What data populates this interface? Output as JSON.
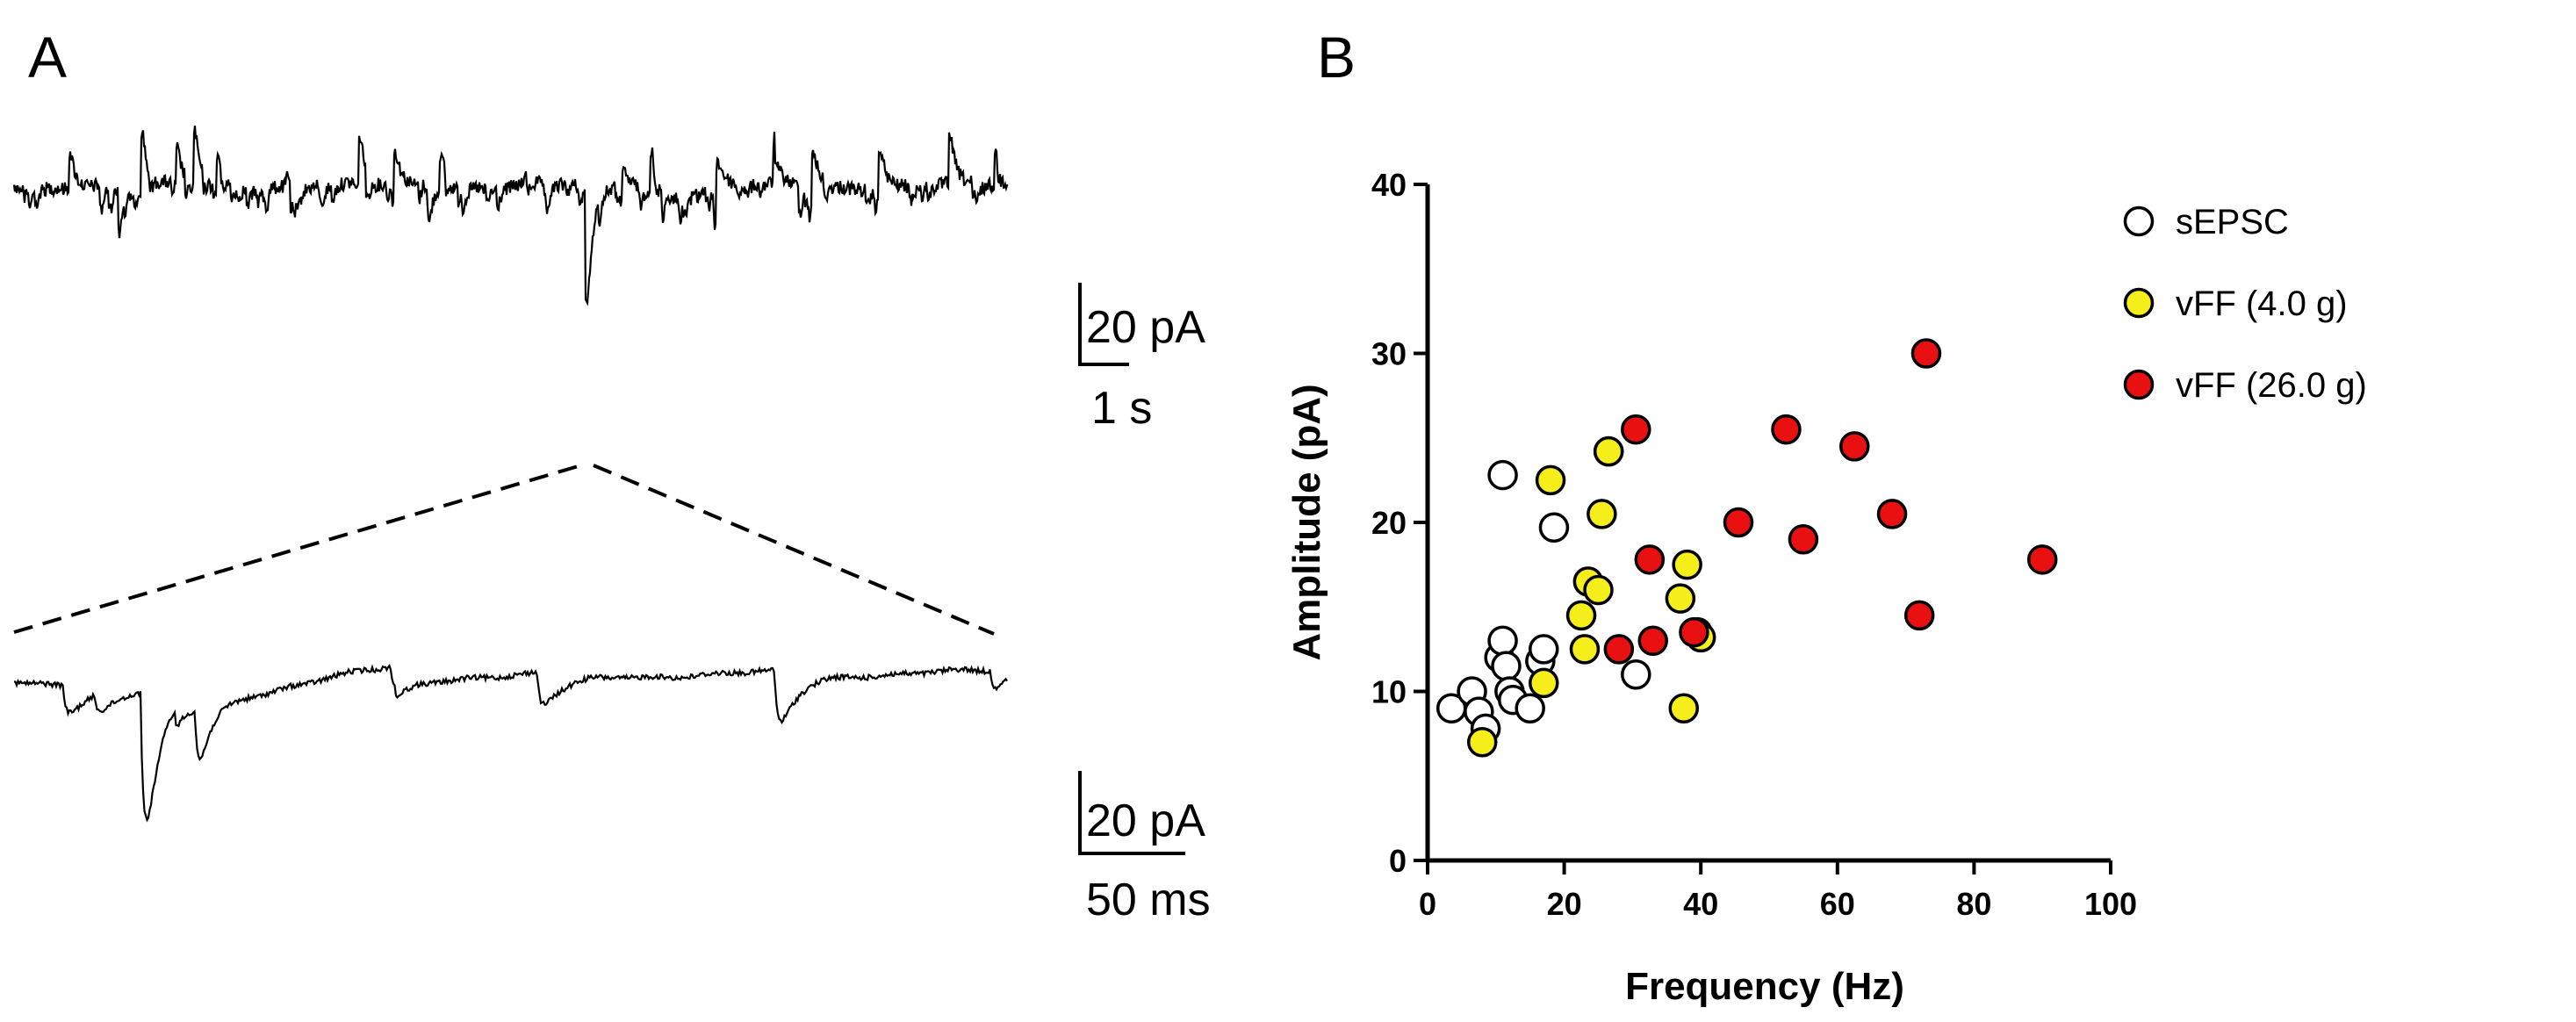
{
  "panels": {
    "a_label": "A",
    "b_label": "B"
  },
  "traces": {
    "upper": {
      "scale_amplitude": "20 pA",
      "scale_time": "1 s"
    },
    "lower": {
      "scale_amplitude": "20 pA",
      "scale_time": "50 ms"
    }
  },
  "chart_data": {
    "type": "scatter",
    "title": "",
    "xlabel": "Frequency (Hz)",
    "ylabel": "Amplitude (pA)",
    "xlim": [
      0,
      100
    ],
    "ylim": [
      0,
      40
    ],
    "xticks": [
      0,
      20,
      40,
      60,
      80,
      100
    ],
    "yticks": [
      0,
      10,
      20,
      30,
      40
    ],
    "grid": false,
    "legend_position": "top-right",
    "series": [
      {
        "name": "sEPSC",
        "color": "#ffffff",
        "x": [
          3.5,
          6.5,
          7.5,
          8.5,
          10.5,
          11,
          11.5,
          12,
          12.5,
          15,
          16.5,
          17,
          18.5,
          30.5,
          11
        ],
        "y": [
          9,
          10,
          8.8,
          7.8,
          12,
          13,
          11.5,
          10,
          9.5,
          9,
          11.8,
          12.5,
          19.7,
          11,
          22.8
        ]
      },
      {
        "name": "vFF (4.0 g)",
        "color": "#f5ee1a",
        "x": [
          8,
          17,
          18,
          22.5,
          23,
          23.5,
          25,
          25.5,
          26.5,
          37,
          37.5,
          38,
          39.5,
          40,
          26.5
        ],
        "y": [
          7,
          10.5,
          22.5,
          14.5,
          12.5,
          16.5,
          16,
          20.5,
          24.2,
          15.5,
          9,
          17.5,
          13.5,
          13.2,
          24.2
        ]
      },
      {
        "name": "vFF (26.0 g)",
        "color": "#e81010",
        "x": [
          28,
          30.5,
          32.5,
          33,
          45.5,
          52.5,
          55,
          62.5,
          68,
          72,
          73,
          90,
          39
        ],
        "y": [
          12.5,
          25.5,
          17.8,
          13,
          20,
          25.5,
          19,
          24.5,
          20.5,
          14.5,
          30,
          17.8,
          13.5
        ]
      }
    ]
  }
}
